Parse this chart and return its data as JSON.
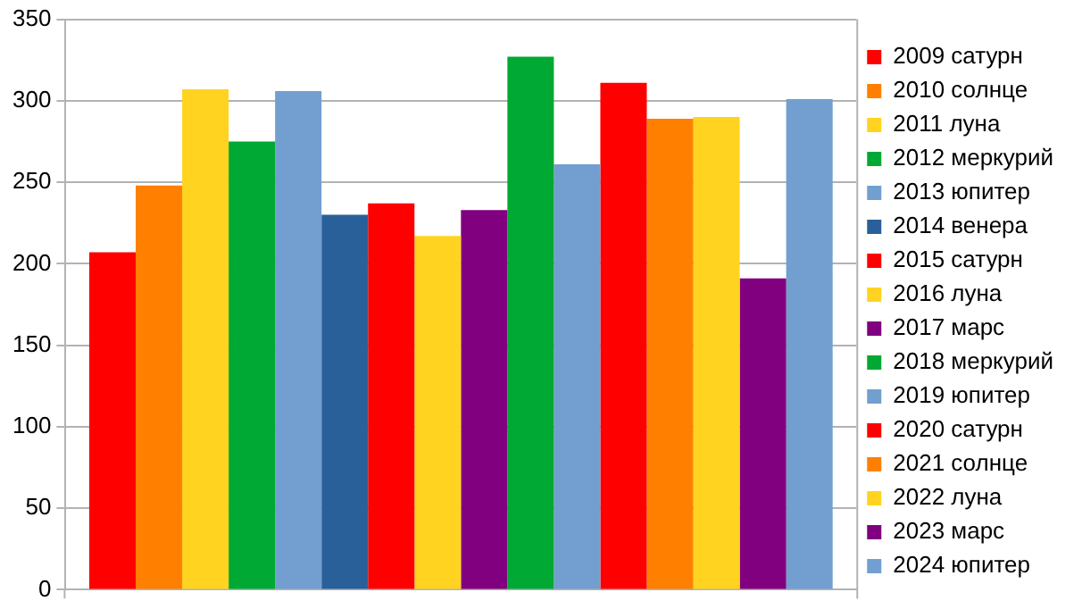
{
  "chart_data": {
    "type": "bar",
    "categories": [
      null
    ],
    "series": [
      {
        "name": "2009 сатурн",
        "color": "#ff0000",
        "values": [
          207
        ]
      },
      {
        "name": "2010 солнце",
        "color": "#ff8000",
        "values": [
          248
        ]
      },
      {
        "name": "2011 луна",
        "color": "#ffd320",
        "values": [
          307
        ]
      },
      {
        "name": "2012 меркурий",
        "color": "#00a933",
        "values": [
          275
        ]
      },
      {
        "name": "2013 юпитер",
        "color": "#729fcf",
        "values": [
          306
        ]
      },
      {
        "name": "2014 венера",
        "color": "#2a6099",
        "values": [
          230
        ]
      },
      {
        "name": "2015 сатурн",
        "color": "#ff0000",
        "values": [
          237
        ]
      },
      {
        "name": "2016 луна",
        "color": "#ffd320",
        "values": [
          217
        ]
      },
      {
        "name": "2017 марс",
        "color": "#800080",
        "values": [
          233
        ]
      },
      {
        "name": "2018 меркурий",
        "color": "#00a933",
        "values": [
          327
        ]
      },
      {
        "name": "2019 юпитер",
        "color": "#729fcf",
        "values": [
          261
        ]
      },
      {
        "name": "2020 сатурн",
        "color": "#ff0000",
        "values": [
          311
        ]
      },
      {
        "name": "2021 солнце",
        "color": "#ff8000",
        "values": [
          289
        ]
      },
      {
        "name": "2022 луна",
        "color": "#ffd320",
        "values": [
          290
        ]
      },
      {
        "name": "2023 марс",
        "color": "#800080",
        "values": [
          191
        ]
      },
      {
        "name": "2024 юпитер",
        "color": "#729fcf",
        "values": [
          301
        ]
      }
    ],
    "ylim": [
      0,
      350
    ],
    "yticks": [
      0,
      50,
      100,
      150,
      200,
      250,
      300,
      350
    ],
    "grid": "y",
    "legend": "right"
  }
}
